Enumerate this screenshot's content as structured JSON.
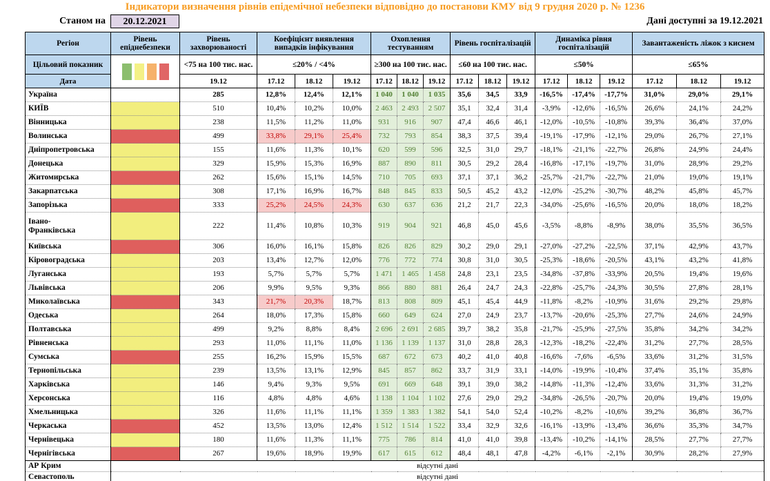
{
  "title": "Індикатори визначення рівнів епідемічної небезпеки відповідно до постанови КМУ від 9 грудня 2020 р. № 1236",
  "meta": {
    "as_of_label": "Станом на",
    "as_of_date": "20.12.2021",
    "available_label": "Дані доступні за",
    "available_date": "19.12.2021"
  },
  "colors": {
    "title_orange": "#F79C22",
    "header_blue": "#BDD7EE",
    "date_box_lavender": "#E0D5E7",
    "level_yellow": "#F2EE7E",
    "level_red": "#DF5F5D",
    "alert_bg": "#F7CBCA",
    "alert_text": "#C00000",
    "testing_bg": "#E2EFDA",
    "testing_text": "#538135"
  },
  "header": {
    "region_label": "Регіон",
    "target_label": "Цільовий показник",
    "date_label": "Дата",
    "legend_colors": [
      "#8CBE6E",
      "#F4F186",
      "#F6B26B",
      "#E06666"
    ],
    "groups": [
      {
        "title": "Рівень епіднебезпеки",
        "target": "",
        "dates": []
      },
      {
        "title": "Рівень захворюваності",
        "target": "<75 на 100 тис. нас.",
        "dates": [
          "19.12"
        ]
      },
      {
        "title": "Коефіцієнт виявлення випадків інфікування",
        "target": "≤20% / <4%",
        "dates": [
          "17.12",
          "18.12",
          "19.12"
        ]
      },
      {
        "title": "Охоплення тестуванням",
        "target": "≥300 на 100 тис. нас.",
        "dates": [
          "17.12",
          "18.12",
          "19.12"
        ]
      },
      {
        "title": "Рівень госпіталізацій",
        "target": "≤60 на 100 тис. нас.",
        "dates": [
          "17.12",
          "18.12",
          "19.12"
        ]
      },
      {
        "title": "Динаміка рівня госпіталізацій",
        "target": "≤50%",
        "dates": [
          "17.12",
          "18.12",
          "19.12"
        ]
      },
      {
        "title": "Завантаженість ліжок з киснем",
        "target": "≤65%",
        "dates": [
          "17.12",
          "18.12",
          "19.12"
        ]
      }
    ]
  },
  "rows": [
    {
      "name": "Україна",
      "bold": true,
      "level": "none",
      "incidence": "285",
      "detection": [
        "12,8%",
        "12,4%",
        "12,1%"
      ],
      "detection_alert": [
        false,
        false,
        false
      ],
      "testing": [
        "1 040",
        "1 040",
        "1 035"
      ],
      "hospitalization": [
        "35,6",
        "34,5",
        "33,9"
      ],
      "dynamics": [
        "-16,5%",
        "-17,4%",
        "-17,7%"
      ],
      "beds": [
        "31,0%",
        "29,0%",
        "29,1%"
      ]
    },
    {
      "name": "КИЇВ",
      "bold": false,
      "level": "yellow",
      "incidence": "510",
      "detection": [
        "10,4%",
        "10,2%",
        "10,0%"
      ],
      "detection_alert": [
        false,
        false,
        false
      ],
      "testing": [
        "2 463",
        "2 493",
        "2 507"
      ],
      "hospitalization": [
        "35,1",
        "32,4",
        "31,4"
      ],
      "dynamics": [
        "-3,9%",
        "-12,6%",
        "-16,5%"
      ],
      "beds": [
        "26,6%",
        "24,1%",
        "24,2%"
      ]
    },
    {
      "name": "Вінницька",
      "bold": false,
      "level": "yellow",
      "incidence": "238",
      "detection": [
        "11,5%",
        "11,2%",
        "11,0%"
      ],
      "detection_alert": [
        false,
        false,
        false
      ],
      "testing": [
        "931",
        "916",
        "907"
      ],
      "hospitalization": [
        "47,4",
        "46,6",
        "46,1"
      ],
      "dynamics": [
        "-12,0%",
        "-10,5%",
        "-10,8%"
      ],
      "beds": [
        "39,3%",
        "36,4%",
        "37,0%"
      ]
    },
    {
      "name": "Волинська",
      "bold": false,
      "level": "red",
      "incidence": "499",
      "detection": [
        "33,8%",
        "29,1%",
        "25,4%"
      ],
      "detection_alert": [
        true,
        true,
        true
      ],
      "testing": [
        "732",
        "793",
        "854"
      ],
      "hospitalization": [
        "38,3",
        "37,5",
        "39,4"
      ],
      "dynamics": [
        "-19,1%",
        "-17,9%",
        "-12,1%"
      ],
      "beds": [
        "29,0%",
        "26,7%",
        "27,1%"
      ]
    },
    {
      "name": "Дніпропетровська",
      "bold": false,
      "level": "yellow",
      "incidence": "155",
      "detection": [
        "11,6%",
        "11,3%",
        "10,1%"
      ],
      "detection_alert": [
        false,
        false,
        false
      ],
      "testing": [
        "620",
        "599",
        "596"
      ],
      "hospitalization": [
        "32,5",
        "31,0",
        "29,7"
      ],
      "dynamics": [
        "-18,1%",
        "-21,1%",
        "-22,7%"
      ],
      "beds": [
        "26,8%",
        "24,9%",
        "24,4%"
      ]
    },
    {
      "name": "Донецька",
      "bold": false,
      "level": "yellow",
      "incidence": "329",
      "detection": [
        "15,9%",
        "15,3%",
        "16,9%"
      ],
      "detection_alert": [
        false,
        false,
        false
      ],
      "testing": [
        "887",
        "890",
        "811"
      ],
      "hospitalization": [
        "30,5",
        "29,2",
        "28,4"
      ],
      "dynamics": [
        "-16,8%",
        "-17,1%",
        "-19,7%"
      ],
      "beds": [
        "31,0%",
        "28,9%",
        "29,2%"
      ]
    },
    {
      "name": "Житомирська",
      "bold": false,
      "level": "red",
      "incidence": "262",
      "detection": [
        "15,6%",
        "15,1%",
        "14,5%"
      ],
      "detection_alert": [
        false,
        false,
        false
      ],
      "testing": [
        "710",
        "705",
        "693"
      ],
      "hospitalization": [
        "37,1",
        "37,1",
        "36,2"
      ],
      "dynamics": [
        "-25,7%",
        "-21,7%",
        "-22,7%"
      ],
      "beds": [
        "21,0%",
        "19,0%",
        "19,1%"
      ]
    },
    {
      "name": "Закарпатська",
      "bold": false,
      "level": "yellow",
      "incidence": "308",
      "detection": [
        "17,1%",
        "16,9%",
        "16,7%"
      ],
      "detection_alert": [
        false,
        false,
        false
      ],
      "testing": [
        "848",
        "845",
        "833"
      ],
      "hospitalization": [
        "50,5",
        "45,2",
        "43,2"
      ],
      "dynamics": [
        "-12,0%",
        "-25,2%",
        "-30,7%"
      ],
      "beds": [
        "48,2%",
        "45,8%",
        "45,7%"
      ]
    },
    {
      "name": "Запорізька",
      "bold": false,
      "level": "red",
      "incidence": "333",
      "detection": [
        "25,2%",
        "24,5%",
        "24,3%"
      ],
      "detection_alert": [
        true,
        true,
        true
      ],
      "testing": [
        "630",
        "637",
        "636"
      ],
      "hospitalization": [
        "21,2",
        "21,7",
        "22,3"
      ],
      "dynamics": [
        "-34,0%",
        "-25,6%",
        "-16,5%"
      ],
      "beds": [
        "20,0%",
        "18,0%",
        "18,2%"
      ]
    },
    {
      "name": "Івано-\nФранківська",
      "bold": false,
      "level": "yellow",
      "incidence": "222",
      "detection": [
        "11,4%",
        "10,8%",
        "10,3%"
      ],
      "detection_alert": [
        false,
        false,
        false
      ],
      "testing": [
        "919",
        "904",
        "921"
      ],
      "hospitalization": [
        "46,8",
        "45,0",
        "45,6"
      ],
      "dynamics": [
        "-3,5%",
        "-8,8%",
        "-8,9%"
      ],
      "beds": [
        "38,0%",
        "35,5%",
        "36,5%"
      ]
    },
    {
      "name": "Київська",
      "bold": false,
      "level": "red",
      "incidence": "306",
      "detection": [
        "16,0%",
        "16,1%",
        "15,8%"
      ],
      "detection_alert": [
        false,
        false,
        false
      ],
      "testing": [
        "826",
        "826",
        "829"
      ],
      "hospitalization": [
        "30,2",
        "29,0",
        "29,1"
      ],
      "dynamics": [
        "-27,0%",
        "-27,2%",
        "-22,5%"
      ],
      "beds": [
        "37,1%",
        "42,9%",
        "43,7%"
      ]
    },
    {
      "name": "Кіровоградська",
      "bold": false,
      "level": "yellow",
      "incidence": "203",
      "detection": [
        "13,4%",
        "12,7%",
        "12,0%"
      ],
      "detection_alert": [
        false,
        false,
        false
      ],
      "testing": [
        "776",
        "772",
        "774"
      ],
      "hospitalization": [
        "30,8",
        "31,0",
        "30,5"
      ],
      "dynamics": [
        "-25,3%",
        "-18,6%",
        "-20,5%"
      ],
      "beds": [
        "43,1%",
        "43,2%",
        "41,8%"
      ]
    },
    {
      "name": "Луганська",
      "bold": false,
      "level": "yellow",
      "incidence": "193",
      "detection": [
        "5,7%",
        "5,7%",
        "5,7%"
      ],
      "detection_alert": [
        false,
        false,
        false
      ],
      "testing": [
        "1 471",
        "1 465",
        "1 458"
      ],
      "hospitalization": [
        "24,8",
        "23,1",
        "23,5"
      ],
      "dynamics": [
        "-34,8%",
        "-37,8%",
        "-33,9%"
      ],
      "beds": [
        "20,5%",
        "19,4%",
        "19,6%"
      ]
    },
    {
      "name": "Львівська",
      "bold": false,
      "level": "yellow",
      "incidence": "206",
      "detection": [
        "9,9%",
        "9,5%",
        "9,3%"
      ],
      "detection_alert": [
        false,
        false,
        false
      ],
      "testing": [
        "866",
        "880",
        "881"
      ],
      "hospitalization": [
        "26,4",
        "24,7",
        "24,3"
      ],
      "dynamics": [
        "-22,8%",
        "-25,7%",
        "-24,3%"
      ],
      "beds": [
        "30,5%",
        "27,8%",
        "28,1%"
      ]
    },
    {
      "name": "Миколаївська",
      "bold": false,
      "level": "red",
      "incidence": "343",
      "detection": [
        "21,7%",
        "20,3%",
        "18,7%"
      ],
      "detection_alert": [
        true,
        true,
        false
      ],
      "testing": [
        "813",
        "808",
        "809"
      ],
      "hospitalization": [
        "45,1",
        "45,4",
        "44,9"
      ],
      "dynamics": [
        "-11,8%",
        "-8,2%",
        "-10,9%"
      ],
      "beds": [
        "31,6%",
        "29,2%",
        "29,8%"
      ]
    },
    {
      "name": "Одеська",
      "bold": false,
      "level": "yellow",
      "incidence": "264",
      "detection": [
        "18,0%",
        "17,3%",
        "15,8%"
      ],
      "detection_alert": [
        false,
        false,
        false
      ],
      "testing": [
        "660",
        "649",
        "624"
      ],
      "hospitalization": [
        "27,0",
        "24,9",
        "23,7"
      ],
      "dynamics": [
        "-13,7%",
        "-20,6%",
        "-25,3%"
      ],
      "beds": [
        "27,7%",
        "24,6%",
        "24,9%"
      ]
    },
    {
      "name": "Полтавська",
      "bold": false,
      "level": "yellow",
      "incidence": "499",
      "detection": [
        "9,2%",
        "8,8%",
        "8,4%"
      ],
      "detection_alert": [
        false,
        false,
        false
      ],
      "testing": [
        "2 696",
        "2 691",
        "2 685"
      ],
      "hospitalization": [
        "39,7",
        "38,2",
        "35,8"
      ],
      "dynamics": [
        "-21,7%",
        "-25,9%",
        "-27,5%"
      ],
      "beds": [
        "35,8%",
        "34,2%",
        "34,2%"
      ]
    },
    {
      "name": "Рівненська",
      "bold": false,
      "level": "yellow",
      "incidence": "293",
      "detection": [
        "11,0%",
        "11,1%",
        "11,0%"
      ],
      "detection_alert": [
        false,
        false,
        false
      ],
      "testing": [
        "1 136",
        "1 139",
        "1 137"
      ],
      "hospitalization": [
        "31,0",
        "28,8",
        "28,3"
      ],
      "dynamics": [
        "-12,3%",
        "-18,2%",
        "-22,4%"
      ],
      "beds": [
        "31,2%",
        "27,7%",
        "28,5%"
      ]
    },
    {
      "name": "Сумська",
      "bold": false,
      "level": "red",
      "incidence": "255",
      "detection": [
        "16,2%",
        "15,9%",
        "15,5%"
      ],
      "detection_alert": [
        false,
        false,
        false
      ],
      "testing": [
        "687",
        "672",
        "673"
      ],
      "hospitalization": [
        "40,2",
        "41,0",
        "40,8"
      ],
      "dynamics": [
        "-16,6%",
        "-7,6%",
        "-6,5%"
      ],
      "beds": [
        "33,6%",
        "31,2%",
        "31,5%"
      ]
    },
    {
      "name": "Тернопільська",
      "bold": false,
      "level": "yellow",
      "incidence": "239",
      "detection": [
        "13,5%",
        "13,1%",
        "12,9%"
      ],
      "detection_alert": [
        false,
        false,
        false
      ],
      "testing": [
        "845",
        "857",
        "862"
      ],
      "hospitalization": [
        "33,7",
        "31,9",
        "33,1"
      ],
      "dynamics": [
        "-14,0%",
        "-19,9%",
        "-10,4%"
      ],
      "beds": [
        "37,4%",
        "35,1%",
        "35,8%"
      ]
    },
    {
      "name": "Харківська",
      "bold": false,
      "level": "yellow",
      "incidence": "146",
      "detection": [
        "9,4%",
        "9,3%",
        "9,5%"
      ],
      "detection_alert": [
        false,
        false,
        false
      ],
      "testing": [
        "691",
        "669",
        "648"
      ],
      "hospitalization": [
        "39,1",
        "39,0",
        "38,2"
      ],
      "dynamics": [
        "-14,8%",
        "-11,3%",
        "-12,4%"
      ],
      "beds": [
        "33,6%",
        "31,3%",
        "31,2%"
      ]
    },
    {
      "name": "Херсонська",
      "bold": false,
      "level": "yellow",
      "incidence": "116",
      "detection": [
        "4,8%",
        "4,8%",
        "4,6%"
      ],
      "detection_alert": [
        false,
        false,
        false
      ],
      "testing": [
        "1 138",
        "1 104",
        "1 102"
      ],
      "hospitalization": [
        "27,6",
        "29,0",
        "29,2"
      ],
      "dynamics": [
        "-34,8%",
        "-26,5%",
        "-20,7%"
      ],
      "beds": [
        "20,0%",
        "19,4%",
        "19,0%"
      ]
    },
    {
      "name": "Хмельницька",
      "bold": false,
      "level": "yellow",
      "incidence": "326",
      "detection": [
        "11,6%",
        "11,1%",
        "11,1%"
      ],
      "detection_alert": [
        false,
        false,
        false
      ],
      "testing": [
        "1 359",
        "1 383",
        "1 382"
      ],
      "hospitalization": [
        "54,1",
        "54,0",
        "52,4"
      ],
      "dynamics": [
        "-10,2%",
        "-8,2%",
        "-10,6%"
      ],
      "beds": [
        "39,2%",
        "36,8%",
        "36,7%"
      ]
    },
    {
      "name": "Черкаська",
      "bold": false,
      "level": "red",
      "incidence": "452",
      "detection": [
        "13,5%",
        "13,0%",
        "12,4%"
      ],
      "detection_alert": [
        false,
        false,
        false
      ],
      "testing": [
        "1 512",
        "1 514",
        "1 522"
      ],
      "hospitalization": [
        "33,4",
        "32,9",
        "32,6"
      ],
      "dynamics": [
        "-16,1%",
        "-13,9%",
        "-13,4%"
      ],
      "beds": [
        "36,6%",
        "35,3%",
        "34,7%"
      ]
    },
    {
      "name": "Чернівецька",
      "bold": false,
      "level": "yellow",
      "incidence": "180",
      "detection": [
        "11,6%",
        "11,3%",
        "11,1%"
      ],
      "detection_alert": [
        false,
        false,
        false
      ],
      "testing": [
        "775",
        "786",
        "814"
      ],
      "hospitalization": [
        "41,0",
        "41,0",
        "39,8"
      ],
      "dynamics": [
        "-13,4%",
        "-10,2%",
        "-14,1%"
      ],
      "beds": [
        "28,5%",
        "27,7%",
        "27,7%"
      ]
    },
    {
      "name": "Чернігівська",
      "bold": false,
      "level": "red",
      "incidence": "267",
      "detection": [
        "19,6%",
        "18,9%",
        "19,9%"
      ],
      "detection_alert": [
        false,
        false,
        false
      ],
      "testing": [
        "617",
        "615",
        "612"
      ],
      "hospitalization": [
        "48,4",
        "48,1",
        "47,8"
      ],
      "dynamics": [
        "-4,2%",
        "-6,1%",
        "-2,1%"
      ],
      "beds": [
        "30,9%",
        "28,2%",
        "27,9%"
      ]
    }
  ],
  "no_data_rows": [
    {
      "name": "АР Крим",
      "text": "відсутні дані"
    },
    {
      "name": "Севастополь",
      "text": "відсутні дані"
    }
  ]
}
